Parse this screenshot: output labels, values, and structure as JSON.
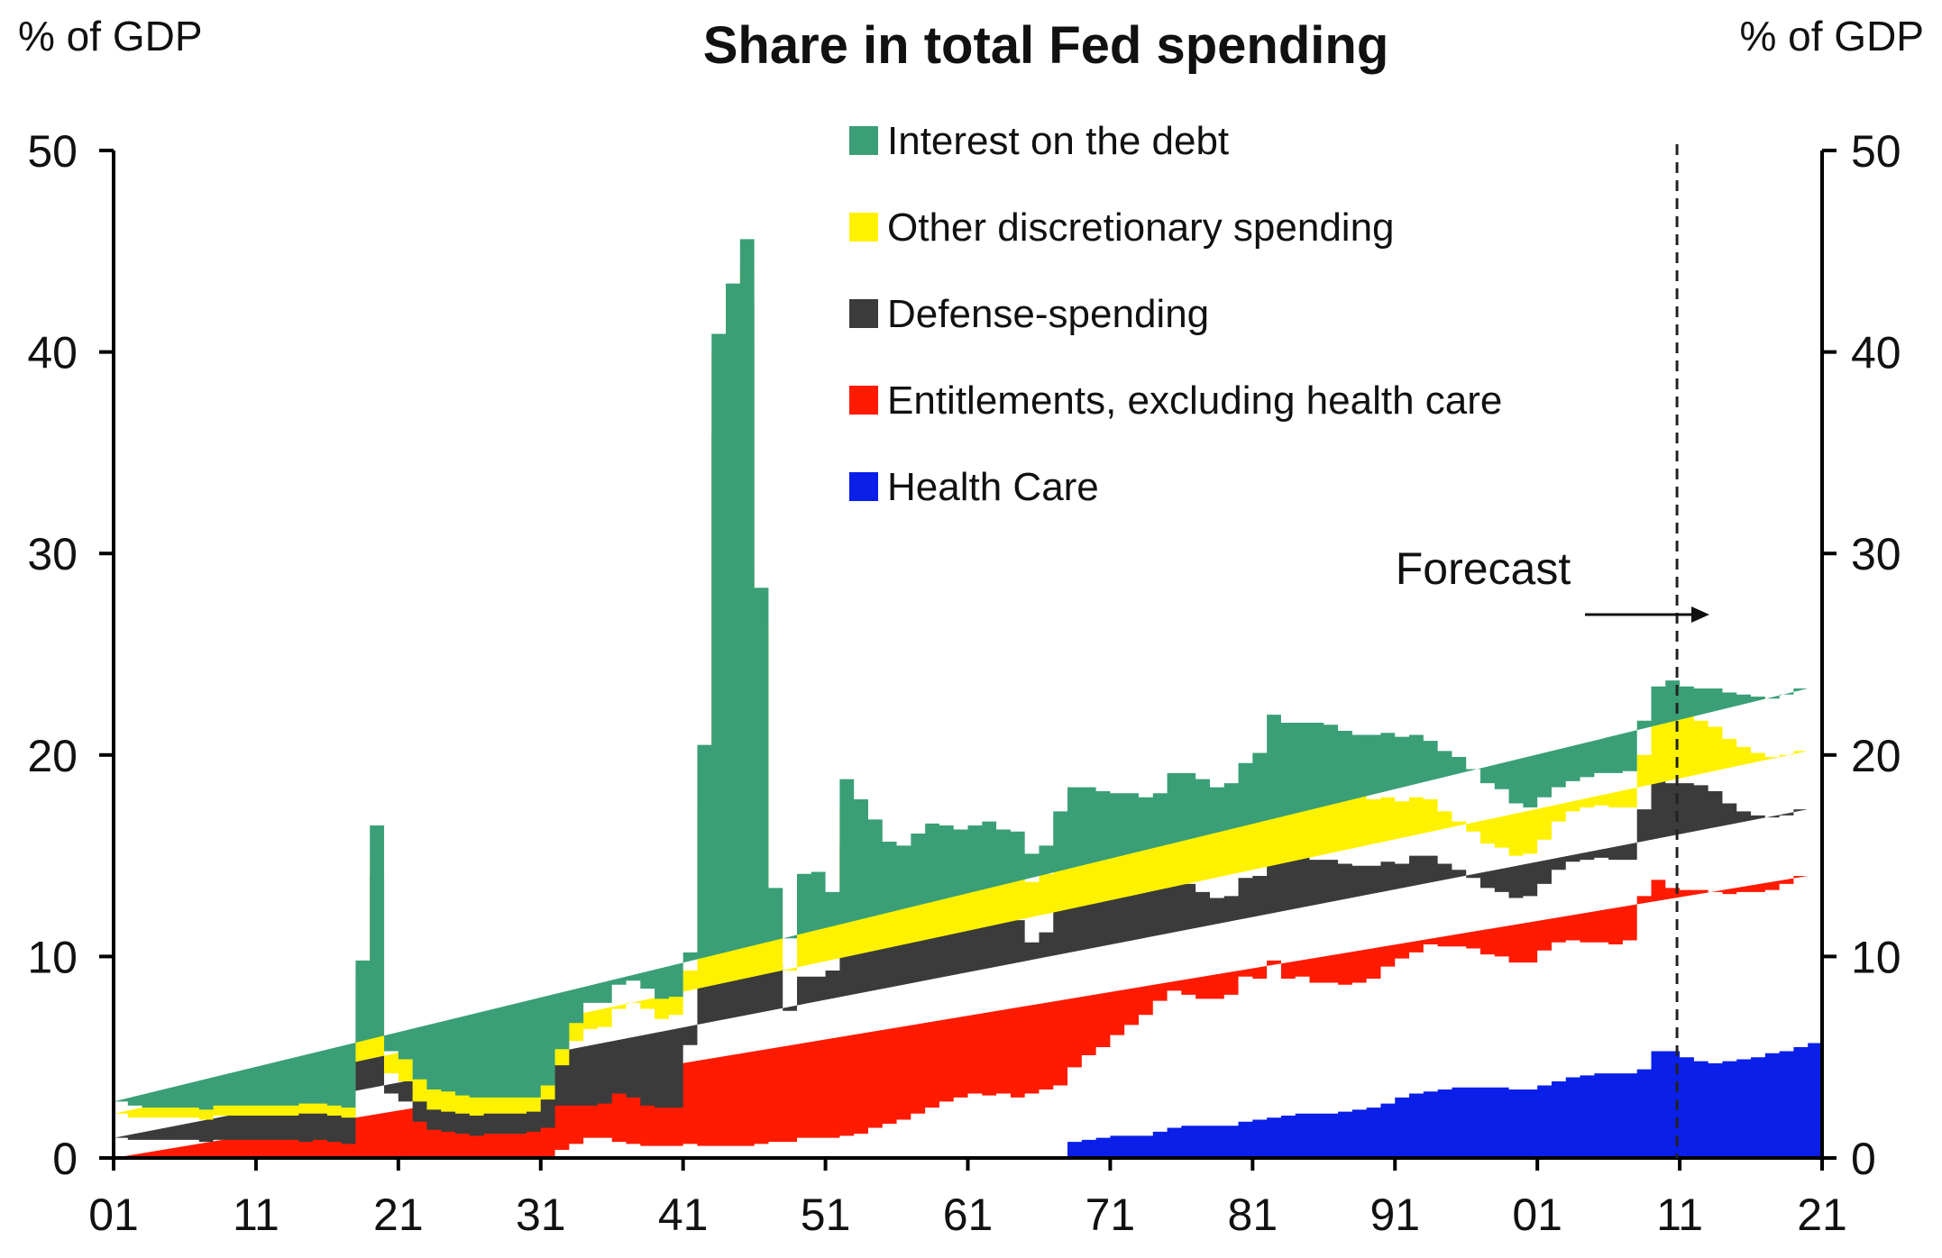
{
  "chart_data": {
    "type": "area",
    "title": "Share in total Fed spending",
    "left_unit_label": "% of GDP",
    "right_unit_label": "% of GDP",
    "y_ticks": [
      "0",
      "10",
      "20",
      "30",
      "40",
      "50"
    ],
    "ylim": [
      0,
      50
    ],
    "x_tick_labels": [
      "01",
      "11",
      "21",
      "31",
      "41",
      "51",
      "61",
      "71",
      "81",
      "91",
      "01",
      "11",
      "21"
    ],
    "x_range": [
      1901,
      2021
    ],
    "forecast_label": "Forecast",
    "forecast_start_year": 2011,
    "legend": [
      {
        "key": "interest",
        "label": "Interest on the debt",
        "color": "#3a9f76"
      },
      {
        "key": "other",
        "label": "Other discretionary spending",
        "color": "#fff200"
      },
      {
        "key": "defense",
        "label": "Defense-spending",
        "color": "#3b3b3b"
      },
      {
        "key": "entitlements",
        "label": "Entitlements, excluding health care",
        "color": "#ff1a00"
      },
      {
        "key": "health",
        "label": "Health Care",
        "color": "#0a1fe8"
      }
    ],
    "years": [
      1901,
      1902,
      1903,
      1904,
      1905,
      1906,
      1907,
      1908,
      1909,
      1910,
      1911,
      1912,
      1913,
      1914,
      1915,
      1916,
      1917,
      1918,
      1919,
      1920,
      1921,
      1922,
      1923,
      1924,
      1925,
      1926,
      1927,
      1928,
      1929,
      1930,
      1931,
      1932,
      1933,
      1934,
      1935,
      1936,
      1937,
      1938,
      1939,
      1940,
      1941,
      1942,
      1943,
      1944,
      1945,
      1946,
      1947,
      1948,
      1949,
      1950,
      1951,
      1952,
      1953,
      1954,
      1955,
      1956,
      1957,
      1958,
      1959,
      1960,
      1961,
      1962,
      1963,
      1964,
      1965,
      1966,
      1967,
      1968,
      1969,
      1970,
      1971,
      1972,
      1973,
      1974,
      1975,
      1976,
      1977,
      1978,
      1979,
      1980,
      1981,
      1982,
      1983,
      1984,
      1985,
      1986,
      1987,
      1988,
      1989,
      1990,
      1991,
      1992,
      1993,
      1994,
      1995,
      1996,
      1997,
      1998,
      1999,
      2000,
      2001,
      2002,
      2003,
      2004,
      2005,
      2006,
      2007,
      2008,
      2009,
      2010,
      2011,
      2012,
      2013,
      2014,
      2015,
      2016,
      2017,
      2018,
      2019,
      2020
    ],
    "series": [
      {
        "key": "health",
        "values": [
          0,
          0,
          0,
          0,
          0,
          0,
          0,
          0,
          0,
          0,
          0,
          0,
          0,
          0,
          0,
          0,
          0,
          0,
          0,
          0,
          0,
          0,
          0,
          0,
          0,
          0,
          0,
          0,
          0,
          0,
          0,
          0,
          0,
          0,
          0,
          0,
          0,
          0,
          0,
          0,
          0,
          0,
          0,
          0,
          0,
          0,
          0,
          0,
          0,
          0,
          0,
          0,
          0,
          0,
          0,
          0,
          0,
          0,
          0,
          0,
          0,
          0,
          0,
          0,
          0,
          0,
          0,
          0.8,
          0.9,
          1.0,
          1.1,
          1.1,
          1.1,
          1.3,
          1.5,
          1.6,
          1.6,
          1.6,
          1.6,
          1.8,
          1.9,
          2.0,
          2.1,
          2.2,
          2.2,
          2.2,
          2.3,
          2.4,
          2.5,
          2.7,
          3.0,
          3.2,
          3.3,
          3.4,
          3.5,
          3.5,
          3.5,
          3.5,
          3.4,
          3.4,
          3.6,
          3.8,
          4.0,
          4.1,
          4.2,
          4.2,
          4.2,
          4.4,
          5.3,
          5.3,
          5.0,
          4.8,
          4.7,
          4.8,
          4.9,
          5.0,
          5.2,
          5.3,
          5.5,
          5.7
        ]
      },
      {
        "key": "entitlements",
        "values": [
          0,
          0,
          0,
          0,
          0,
          0,
          0,
          0,
          0,
          0,
          0,
          0,
          0,
          0,
          0,
          0,
          0,
          0,
          0,
          0,
          0,
          0,
          0,
          0,
          0,
          0,
          0,
          0,
          0,
          0,
          0,
          0.4,
          0.7,
          1.0,
          1.0,
          0.8,
          0.7,
          0.6,
          0.6,
          0.6,
          0.7,
          0.6,
          0.6,
          0.6,
          0.6,
          0.7,
          0.8,
          0.8,
          1.0,
          1.0,
          1.0,
          1.1,
          1.2,
          1.5,
          1.7,
          1.9,
          2.2,
          2.5,
          2.8,
          3.0,
          3.2,
          3.1,
          3.2,
          3.0,
          3.2,
          3.4,
          3.6,
          3.7,
          4.2,
          4.5,
          5.0,
          5.5,
          6.0,
          6.5,
          6.8,
          6.5,
          6.3,
          6.3,
          6.5,
          7.2,
          7.0,
          7.8,
          6.8,
          6.8,
          6.5,
          6.5,
          6.3,
          6.3,
          6.4,
          6.8,
          6.9,
          7.0,
          7.3,
          7.1,
          7.0,
          6.9,
          6.6,
          6.5,
          6.3,
          6.3,
          6.7,
          6.9,
          6.8,
          6.6,
          6.5,
          6.4,
          6.6,
          8.6,
          8.5,
          8.1,
          8.3,
          8.5,
          8.5,
          8.3,
          8.3,
          8.2,
          8.1,
          8.3,
          8.5
        ]
      },
      {
        "key": "defense",
        "values": [
          1.0,
          0.9,
          0.9,
          0.9,
          0.9,
          0.9,
          0.8,
          0.9,
          0.9,
          0.9,
          0.9,
          0.9,
          0.9,
          0.8,
          0.9,
          0.8,
          0.7,
          8.0,
          14.0,
          3.2,
          2.8,
          1.8,
          1.4,
          1.3,
          1.2,
          1.1,
          1.2,
          1.2,
          1.2,
          1.3,
          1.5,
          2.2,
          1.9,
          1.6,
          1.7,
          2.4,
          2.3,
          2.0,
          1.9,
          1.9,
          4.9,
          16.6,
          35.3,
          39.0,
          41.8,
          23.9,
          8.8,
          6.5,
          8.0,
          8.0,
          8.3,
          14.5,
          13.5,
          12.1,
          10.8,
          10.5,
          10.6,
          10.5,
          10.0,
          9.4,
          9.3,
          9.5,
          9.0,
          8.8,
          7.5,
          7.8,
          9.4,
          9.6,
          8.9,
          8.2,
          7.6,
          7.1,
          6.3,
          5.7,
          5.8,
          5.5,
          5.3,
          5.0,
          4.9,
          4.9,
          5.1,
          5.8,
          6.2,
          6.0,
          6.1,
          6.1,
          6.0,
          5.8,
          5.6,
          5.2,
          4.7,
          4.8,
          4.4,
          4.1,
          3.8,
          3.5,
          3.3,
          3.2,
          3.2,
          3.3,
          3.3,
          3.6,
          3.9,
          4.1,
          4.2,
          4.2,
          4.0,
          4.3,
          5.0,
          5.2,
          5.3,
          5.2,
          5.0,
          4.5,
          4.0,
          3.8,
          3.6,
          3.4,
          3.3,
          3.3
        ]
      },
      {
        "key": "other",
        "values": [
          1.2,
          1.1,
          1.1,
          1.1,
          1.1,
          1.1,
          1.1,
          1.2,
          1.2,
          1.2,
          1.2,
          1.2,
          1.2,
          1.4,
          1.3,
          1.3,
          1.3,
          1.1,
          1.0,
          1.0,
          1.0,
          1.0,
          1.0,
          1.0,
          1.0,
          1.0,
          1.0,
          1.0,
          1.0,
          1.0,
          1.4,
          2.0,
          3.2,
          3.8,
          3.8,
          4.2,
          4.7,
          4.8,
          4.4,
          4.6,
          3.7,
          2.5,
          4.0,
          2.5,
          1.7,
          1.8,
          2.0,
          2.0,
          3.5,
          3.5,
          2.5,
          1.9,
          1.8,
          1.9,
          1.9,
          1.9,
          2.0,
          2.3,
          2.4,
          2.5,
          2.7,
          2.8,
          2.8,
          3.0,
          3.0,
          2.9,
          2.9,
          2.9,
          3.0,
          3.0,
          3.0,
          3.0,
          3.1,
          3.1,
          3.5,
          3.9,
          4.0,
          3.8,
          3.8,
          3.8,
          3.9,
          3.9,
          3.9,
          3.8,
          3.8,
          3.7,
          3.6,
          3.5,
          3.3,
          3.2,
          3.1,
          2.9,
          2.8,
          2.6,
          2.4,
          2.3,
          2.2,
          2.2,
          2.1,
          2.1,
          2.2,
          2.4,
          2.5,
          2.6,
          2.6,
          2.6,
          2.6,
          2.7,
          3.2,
          3.7,
          3.3,
          3.2,
          3.2,
          3.2,
          3.2,
          3.1,
          3.0,
          3.0,
          2.9,
          2.9
        ]
      },
      {
        "key": "interest",
        "values": [
          0.6,
          0.6,
          0.5,
          0.5,
          0.5,
          0.5,
          0.5,
          0.5,
          0.5,
          0.5,
          0.5,
          0.5,
          0.5,
          0.5,
          0.5,
          0.5,
          0.5,
          0.7,
          1.5,
          1.1,
          1.1,
          1.1,
          1.0,
          1.0,
          0.9,
          0.9,
          0.8,
          0.8,
          0.8,
          0.7,
          0.7,
          0.8,
          0.9,
          1.3,
          1.2,
          1.2,
          1.1,
          1.0,
          1.0,
          0.9,
          0.9,
          0.8,
          1.0,
          1.3,
          1.5,
          1.9,
          1.8,
          1.6,
          1.6,
          1.7,
          1.4,
          1.3,
          1.3,
          1.3,
          1.3,
          1.2,
          1.3,
          1.3,
          1.3,
          1.4,
          1.3,
          1.3,
          1.3,
          1.4,
          1.4,
          1.4,
          1.3,
          1.4,
          1.4,
          1.5,
          1.4,
          1.4,
          1.4,
          1.5,
          1.5,
          1.6,
          1.6,
          1.7,
          1.8,
          1.9,
          2.2,
          2.5,
          2.6,
          2.8,
          3.0,
          3.0,
          3.0,
          3.0,
          3.2,
          3.2,
          3.2,
          3.1,
          2.9,
          3.0,
          3.2,
          3.1,
          3.0,
          2.9,
          2.6,
          2.3,
          2.1,
          1.7,
          1.5,
          1.5,
          1.6,
          1.7,
          1.8,
          1.7,
          1.4,
          1.4,
          1.5,
          1.6,
          1.9,
          2.3,
          2.6,
          2.8,
          2.9,
          3.0,
          3.1,
          3.1
        ]
      }
    ]
  }
}
